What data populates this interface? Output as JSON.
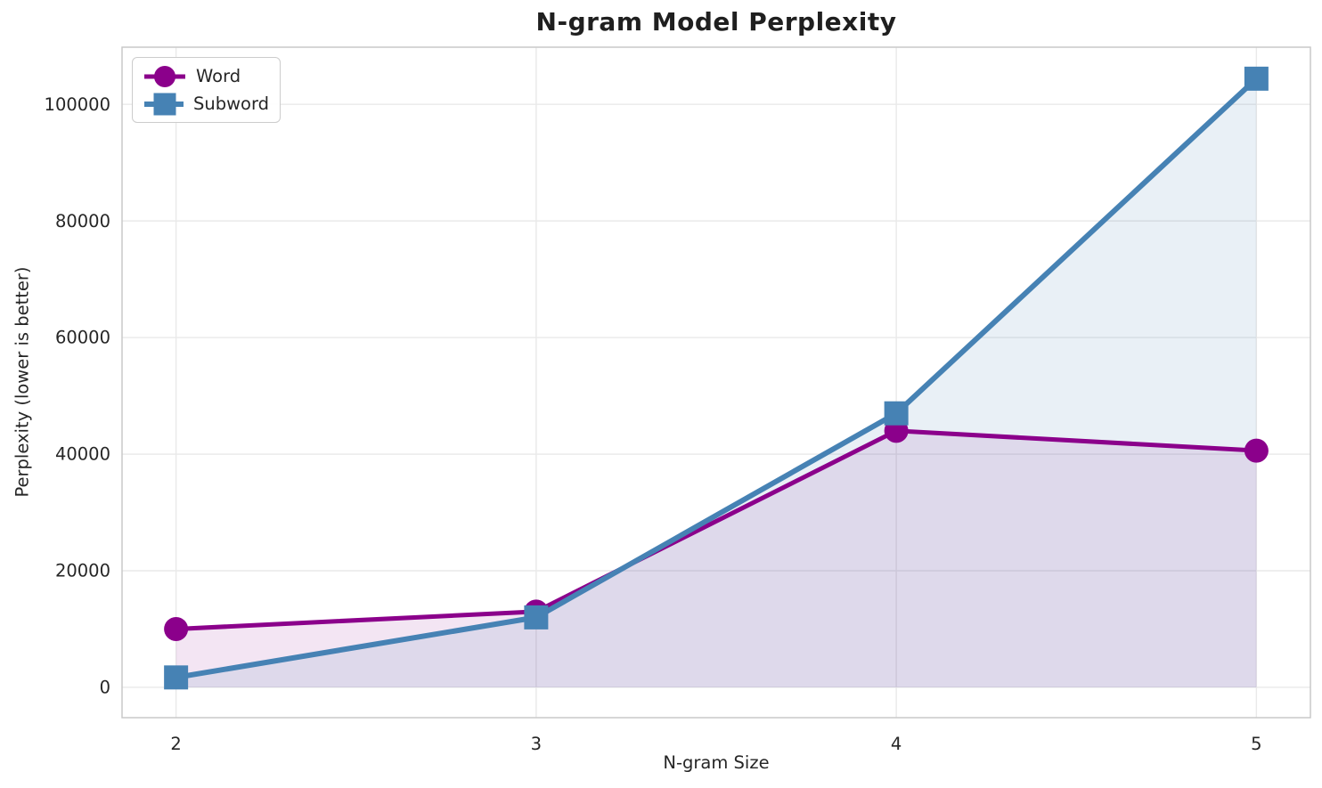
{
  "chart_data": {
    "type": "line",
    "title": "N-gram Model Perplexity",
    "xlabel": "N-gram Size",
    "ylabel": "Perplexity (lower is better)",
    "x": [
      2,
      3,
      4,
      5
    ],
    "series": [
      {
        "name": "Word",
        "marker": "circle",
        "color": "#8B008B",
        "fill_opacity": 0.1,
        "line_width": 5,
        "values": [
          10000,
          13000,
          44000,
          40600
        ]
      },
      {
        "name": "Subword",
        "marker": "square",
        "color": "#4682B4",
        "fill_opacity": 0.12,
        "line_width": 6,
        "values": [
          1700,
          12000,
          47000,
          104400
        ]
      }
    ],
    "area_fill_to_zero": true,
    "xticks": [
      {
        "value": 2,
        "label": "2"
      },
      {
        "value": 3,
        "label": "3"
      },
      {
        "value": 4,
        "label": "4"
      },
      {
        "value": 5,
        "label": "5"
      }
    ],
    "yticks": [
      {
        "value": 0,
        "label": "0"
      },
      {
        "value": 20000,
        "label": "20000"
      },
      {
        "value": 40000,
        "label": "40000"
      },
      {
        "value": 60000,
        "label": "60000"
      },
      {
        "value": 80000,
        "label": "80000"
      },
      {
        "value": 100000,
        "label": "100000"
      }
    ],
    "xlim": [
      1.85,
      5.15
    ],
    "ylim": [
      -5200,
      109800
    ],
    "grid": true,
    "legend_position": "upper left",
    "colors": {
      "background": "#FFFFFF",
      "grid": "#E9E9E9",
      "spine": "#C9C9C9",
      "tick_text": "#262626",
      "title_text": "#1F1F1F"
    }
  }
}
